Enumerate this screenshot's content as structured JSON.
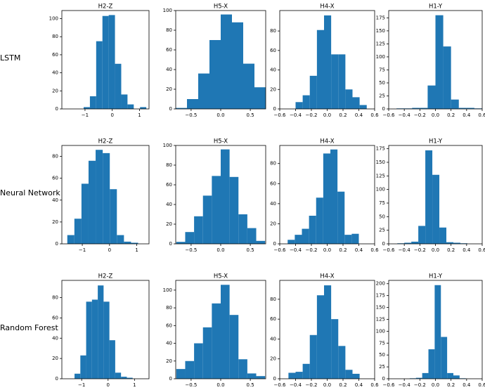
{
  "row_labels": [
    "LSTM",
    "Neural Network",
    "Random Forest"
  ],
  "chart_data": [
    {
      "type": "histogram",
      "title": "H2-Z",
      "color": "#1f77b4",
      "bins": [
        -1.05,
        -0.82,
        -0.59,
        -0.36,
        -0.13,
        0.1,
        0.33,
        0.56,
        0.79,
        1.02,
        1.25
      ],
      "values": [
        2,
        14,
        75,
        103,
        104,
        50,
        16,
        5,
        0,
        2
      ],
      "xlim": [
        -1.85,
        1.35
      ],
      "xticks": [
        {
          "value": -1,
          "label": "−1"
        },
        0,
        1
      ],
      "ylim": [
        0,
        109
      ],
      "yticks": [
        0,
        20,
        40,
        60,
        80,
        100
      ]
    },
    {
      "type": "histogram",
      "title": "H5-X",
      "color": "#1f77b4",
      "bins": [
        -0.76,
        -0.57,
        -0.38,
        -0.19,
        0,
        0.19,
        0.38,
        0.57,
        0.76
      ],
      "values": [
        1,
        10,
        36,
        70,
        96,
        88,
        46,
        22
      ],
      "xlim": [
        -0.76,
        0.76
      ],
      "xticks": [
        {
          "value": -0.5,
          "label": "−0.5"
        },
        {
          "value": 0,
          "label": "0.0"
        },
        {
          "value": 0.5,
          "label": "0.5"
        }
      ],
      "ylim": [
        0,
        100
      ],
      "yticks": [
        0,
        20,
        40,
        60,
        80,
        100
      ]
    },
    {
      "type": "histogram",
      "title": "H4-X",
      "color": "#1f77b4",
      "bins": [
        -0.4,
        -0.31,
        -0.22,
        -0.13,
        -0.04,
        0.05,
        0.14,
        0.23,
        0.32,
        0.41,
        0.5
      ],
      "values": [
        7,
        14,
        34,
        81,
        96,
        56,
        56,
        20,
        12,
        4
      ],
      "xlim": [
        -0.6,
        0.6
      ],
      "xticks": [
        {
          "value": -0.6,
          "label": "−0.6"
        },
        {
          "value": -0.4,
          "label": "−0.4"
        },
        {
          "value": -0.2,
          "label": "−0.2"
        },
        {
          "value": 0,
          "label": "0.0"
        },
        {
          "value": 0.2,
          "label": "0.2"
        },
        {
          "value": 0.4,
          "label": "0.4"
        },
        {
          "value": 0.6,
          "label": "0.6"
        }
      ],
      "ylim": [
        0,
        101
      ],
      "yticks": [
        0,
        20,
        40,
        60,
        80
      ]
    },
    {
      "type": "histogram",
      "title": "H1-Y",
      "color": "#1f77b4",
      "bins": [
        -0.5,
        -0.4,
        -0.3,
        -0.2,
        -0.1,
        0,
        0.1,
        0.2,
        0.3,
        0.4,
        0.5,
        0.6
      ],
      "values": [
        1,
        1,
        2,
        2,
        45,
        180,
        120,
        18,
        2,
        2,
        1
      ],
      "xlim": [
        -0.6,
        0.6
      ],
      "xticks": [
        {
          "value": -0.6,
          "label": "−0.6"
        },
        {
          "value": -0.4,
          "label": "−0.4"
        },
        {
          "value": -0.2,
          "label": "−0.2"
        },
        {
          "value": 0,
          "label": "0.0"
        },
        {
          "value": 0.2,
          "label": "0.2"
        },
        {
          "value": 0.4,
          "label": "0.4"
        },
        {
          "value": 0.6,
          "label": "0.6"
        }
      ],
      "ylim": [
        0,
        189
      ],
      "yticks": [
        0,
        25,
        50,
        75,
        100,
        125,
        150,
        175
      ]
    },
    {
      "type": "histogram",
      "title": "H2-Z",
      "color": "#1f77b4",
      "bins": [
        -1.55,
        -1.29,
        -1.03,
        -0.77,
        -0.51,
        -0.25,
        0.01,
        0.27,
        0.53,
        0.79,
        1.05
      ],
      "values": [
        8,
        23,
        55,
        76,
        86,
        83,
        50,
        8,
        2,
        1
      ],
      "xlim": [
        -1.75,
        1.45
      ],
      "xticks": [
        {
          "value": -1,
          "label": "−1"
        },
        0,
        1
      ],
      "ylim": [
        0,
        90
      ],
      "yticks": [
        0,
        20,
        40,
        60,
        80
      ]
    },
    {
      "type": "histogram",
      "title": "H5-X",
      "color": "#1f77b4",
      "bins": [
        -0.75,
        -0.6,
        -0.45,
        -0.3,
        -0.15,
        0,
        0.15,
        0.3,
        0.45,
        0.6,
        0.75
      ],
      "values": [
        2,
        12,
        28,
        49,
        69,
        96,
        68,
        30,
        16,
        3
      ],
      "xlim": [
        -0.76,
        0.76
      ],
      "xticks": [
        {
          "value": -0.5,
          "label": "−0.5"
        },
        {
          "value": 0,
          "label": "0.0"
        },
        {
          "value": 0.5,
          "label": "0.5"
        }
      ],
      "ylim": [
        0,
        100
      ],
      "yticks": [
        0,
        20,
        40,
        60,
        80,
        100
      ]
    },
    {
      "type": "histogram",
      "title": "H4-X",
      "color": "#1f77b4",
      "bins": [
        -0.5,
        -0.41,
        -0.32,
        -0.23,
        -0.14,
        -0.05,
        0.04,
        0.13,
        0.22,
        0.31,
        0.4
      ],
      "values": [
        4,
        9,
        15,
        28,
        46,
        90,
        94,
        52,
        9,
        10
      ],
      "xlim": [
        -0.6,
        0.6
      ],
      "xticks": [
        {
          "value": -0.6,
          "label": "−0.6"
        },
        {
          "value": -0.4,
          "label": "−0.4"
        },
        {
          "value": -0.2,
          "label": "−0.2"
        },
        {
          "value": 0,
          "label": "0.0"
        },
        {
          "value": 0.2,
          "label": "0.2"
        },
        {
          "value": 0.4,
          "label": "0.4"
        },
        {
          "value": 0.6,
          "label": "0.6"
        }
      ],
      "ylim": [
        0,
        98
      ],
      "yticks": [
        0,
        20,
        40,
        60,
        80
      ]
    },
    {
      "type": "histogram",
      "title": "H1-Y",
      "color": "#1f77b4",
      "bins": [
        -0.49,
        -0.4,
        -0.31,
        -0.22,
        -0.13,
        -0.04,
        0.05,
        0.14,
        0.23,
        0.32,
        0.41
      ],
      "values": [
        1,
        2,
        4,
        33,
        172,
        127,
        30,
        3,
        2,
        1
      ],
      "xlim": [
        -0.6,
        0.6
      ],
      "xticks": [
        {
          "value": -0.6,
          "label": "−0.6"
        },
        {
          "value": -0.4,
          "label": "−0.4"
        },
        {
          "value": -0.2,
          "label": "−0.2"
        },
        {
          "value": 0,
          "label": "0.0"
        },
        {
          "value": 0.2,
          "label": "0.2"
        },
        {
          "value": 0.4,
          "label": "0.4"
        },
        {
          "value": 0.6,
          "label": "0.6"
        }
      ],
      "ylim": [
        0,
        181
      ],
      "yticks": [
        0,
        25,
        50,
        75,
        100,
        125,
        150,
        175
      ]
    },
    {
      "type": "histogram",
      "title": "H2-Z",
      "color": "#1f77b4",
      "bins": [
        -1.27,
        -1.05,
        -0.83,
        -0.61,
        -0.39,
        -0.17,
        0.05,
        0.27,
        0.49,
        0.71,
        0.93
      ],
      "values": [
        5,
        23,
        76,
        78,
        92,
        76,
        38,
        6,
        2,
        1
      ],
      "xlim": [
        -1.75,
        1.55
      ],
      "xticks": [
        {
          "value": -1,
          "label": "−1"
        },
        0,
        1
      ],
      "ylim": [
        0,
        97
      ],
      "yticks": [
        0,
        20,
        40,
        60,
        80
      ]
    },
    {
      "type": "histogram",
      "title": "H5-X",
      "color": "#1f77b4",
      "bins": [
        -0.75,
        -0.6,
        -0.45,
        -0.3,
        -0.15,
        0,
        0.15,
        0.3,
        0.45,
        0.6,
        0.75
      ],
      "values": [
        11,
        20,
        40,
        58,
        85,
        106,
        72,
        22,
        6,
        3
      ],
      "xlim": [
        -0.76,
        0.76
      ],
      "xticks": [
        {
          "value": -0.5,
          "label": "−0.5"
        },
        {
          "value": 0,
          "label": "0.0"
        },
        {
          "value": 0.5,
          "label": "0.5"
        }
      ],
      "ylim": [
        0,
        111
      ],
      "yticks": [
        0,
        20,
        40,
        60,
        80,
        100
      ]
    },
    {
      "type": "histogram",
      "title": "H4-X",
      "color": "#1f77b4",
      "bins": [
        -0.49,
        -0.4,
        -0.31,
        -0.22,
        -0.13,
        -0.04,
        0.05,
        0.14,
        0.23,
        0.32,
        0.41
      ],
      "values": [
        6,
        7,
        15,
        44,
        84,
        94,
        60,
        33,
        9,
        5
      ],
      "xlim": [
        -0.6,
        0.6
      ],
      "xticks": [
        {
          "value": -0.6,
          "label": "−0.6"
        },
        {
          "value": -0.4,
          "label": "−0.4"
        },
        {
          "value": -0.2,
          "label": "−0.2"
        },
        {
          "value": 0,
          "label": "0.0"
        },
        {
          "value": 0.2,
          "label": "0.2"
        },
        {
          "value": 0.4,
          "label": "0.4"
        },
        {
          "value": 0.6,
          "label": "0.6"
        }
      ],
      "ylim": [
        0,
        99
      ],
      "yticks": [
        0,
        20,
        40,
        60,
        80
      ]
    },
    {
      "type": "histogram",
      "title": "H1-Y",
      "color": "#1f77b4",
      "bins": [
        -0.33,
        -0.25,
        -0.17,
        -0.09,
        -0.01,
        0.07,
        0.15,
        0.23,
        0.31,
        0.39
      ],
      "values": [
        1,
        2,
        12,
        62,
        197,
        88,
        12,
        7,
        1
      ],
      "xlim": [
        -0.6,
        0.6
      ],
      "xticks": [
        {
          "value": -0.6,
          "label": "−0.6"
        },
        {
          "value": -0.4,
          "label": "−0.4"
        },
        {
          "value": -0.2,
          "label": "−0.2"
        },
        {
          "value": 0,
          "label": "0.0"
        },
        {
          "value": 0.2,
          "label": "0.2"
        },
        {
          "value": 0.4,
          "label": "0.4"
        },
        {
          "value": 0.6,
          "label": "0.6"
        }
      ],
      "ylim": [
        0,
        207
      ],
      "yticks": [
        0,
        25,
        50,
        75,
        100,
        125,
        150,
        175,
        200
      ]
    }
  ]
}
